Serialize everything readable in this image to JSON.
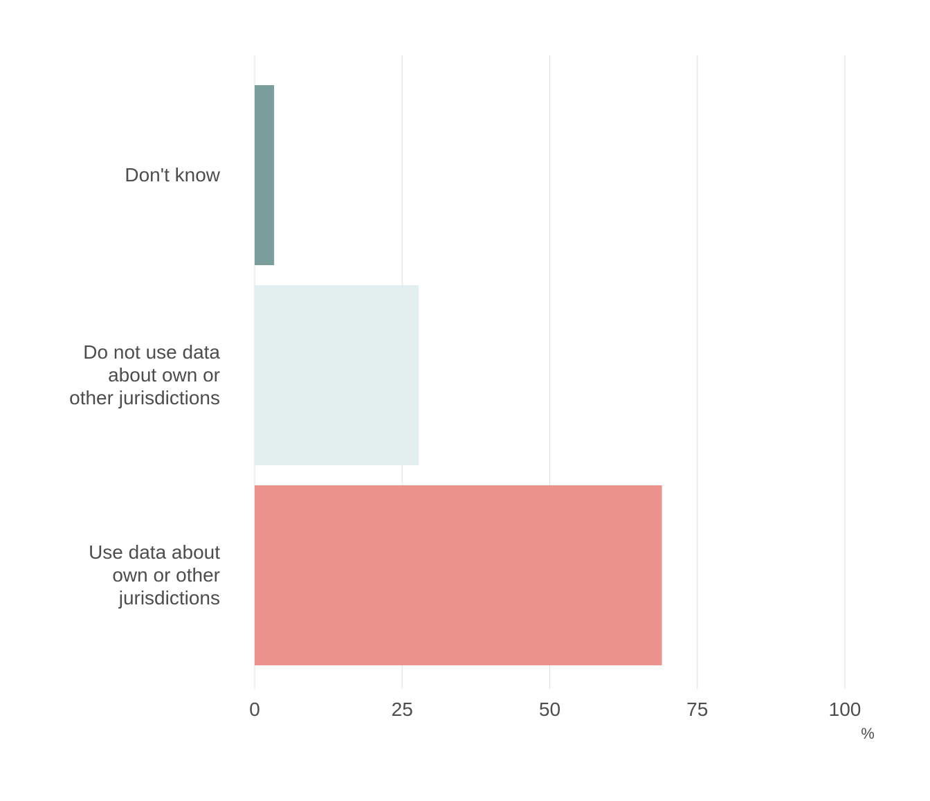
{
  "chart_data": {
    "type": "bar",
    "orientation": "horizontal",
    "categories": [
      [
        "Don't know"
      ],
      [
        "Do not use data",
        "about own or",
        "other jurisdictions"
      ],
      [
        "Use data about",
        "own or other",
        "jurisdictions"
      ]
    ],
    "values": [
      3.3,
      27.8,
      69.0
    ],
    "colors": [
      "#7a9e9c",
      "#e3efee",
      "#ec928d"
    ],
    "x_ticks": [
      "0",
      "25",
      "50",
      "75",
      "100"
    ],
    "x_tick_values": [
      0,
      25,
      50,
      75,
      100
    ],
    "xlim": [
      0,
      100
    ],
    "xlabel": "%",
    "grid": true,
    "grid_color": "#dddddd",
    "text_color": "#4d4d4d"
  }
}
